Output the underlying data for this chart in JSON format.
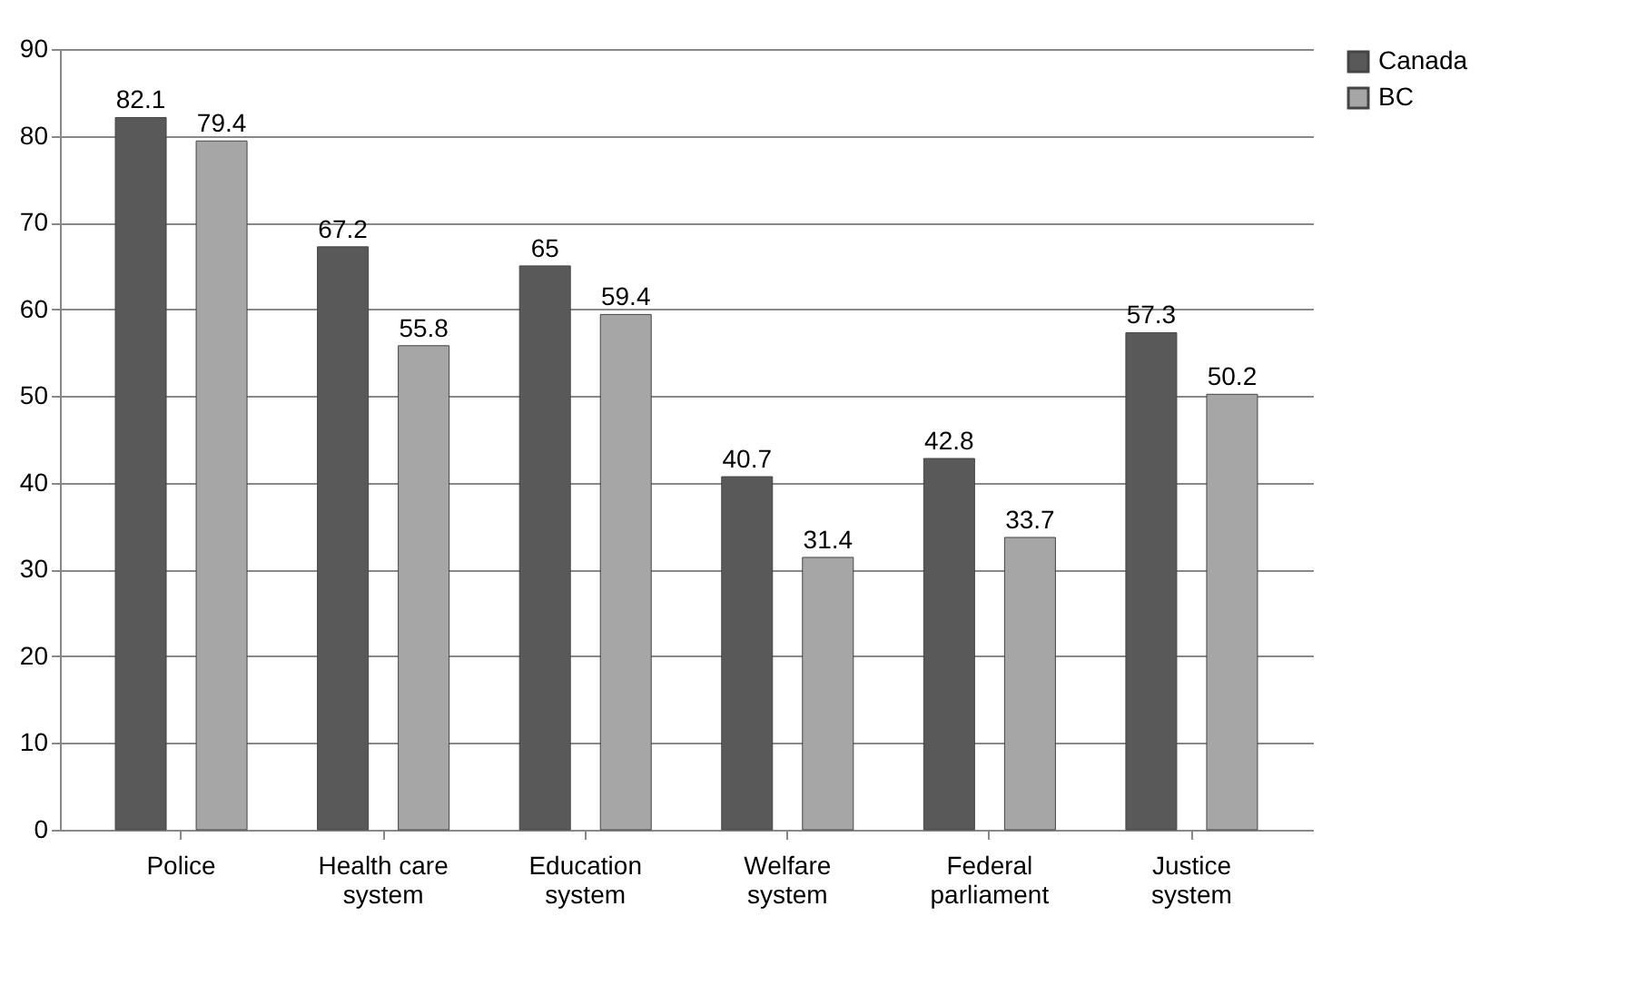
{
  "chart_data": {
    "type": "bar",
    "categories": [
      "Police",
      "Health care system",
      "Education system",
      "Welfare system",
      "Federal parliament",
      "Justice system"
    ],
    "series": [
      {
        "name": "Canada",
        "color": "#595959",
        "values": [
          82.1,
          67.2,
          65,
          40.7,
          42.8,
          57.3
        ]
      },
      {
        "name": "BC",
        "color": "#a6a6a6",
        "values": [
          79.4,
          55.8,
          59.4,
          31.4,
          33.7,
          50.2
        ]
      }
    ],
    "ylim": [
      0,
      90
    ],
    "yticks": [
      0,
      10,
      20,
      30,
      40,
      50,
      60,
      70,
      80,
      90
    ],
    "grid": "y",
    "legend": "right",
    "data_labels": true
  }
}
